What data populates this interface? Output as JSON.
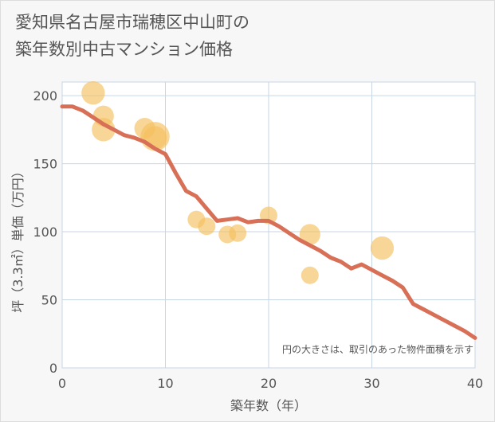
{
  "title": "愛知県名古屋市瑞穂区中山町の\n築年数別中古マンション価格",
  "chart_data": {
    "type": "scatter",
    "title": "愛知県名古屋市瑞穂区中山町の築年数別中古マンション価格",
    "xlabel": "築年数（年）",
    "ylabel": "坪（3.3㎡）単価（万円）",
    "xlim": [
      0,
      40
    ],
    "ylim": [
      0,
      210
    ],
    "x_ticks": [
      0,
      10,
      20,
      30,
      40
    ],
    "y_ticks": [
      0,
      50,
      100,
      150,
      200
    ],
    "grid": true,
    "note": "円の大きさは、取引のあった物件面積を示す",
    "colors": {
      "bubble": "#f5c060",
      "trend": "#d87058"
    },
    "scatter_points": [
      {
        "x": 3,
        "y": 202,
        "size": 3
      },
      {
        "x": 4,
        "y": 185,
        "size": 2
      },
      {
        "x": 4,
        "y": 175,
        "size": 3
      },
      {
        "x": 8,
        "y": 176,
        "size": 2
      },
      {
        "x": 9,
        "y": 170,
        "size": 6
      },
      {
        "x": 9,
        "y": 169,
        "size": 3
      },
      {
        "x": 13,
        "y": 109,
        "size": 1
      },
      {
        "x": 14,
        "y": 104,
        "size": 1
      },
      {
        "x": 16,
        "y": 98,
        "size": 1
      },
      {
        "x": 17,
        "y": 99,
        "size": 1
      },
      {
        "x": 20,
        "y": 112,
        "size": 1
      },
      {
        "x": 24,
        "y": 98,
        "size": 2
      },
      {
        "x": 24,
        "y": 68,
        "size": 1
      },
      {
        "x": 31,
        "y": 88,
        "size": 3
      }
    ],
    "trend_line": [
      {
        "x": 0,
        "y": 192
      },
      {
        "x": 1,
        "y": 192
      },
      {
        "x": 2,
        "y": 189
      },
      {
        "x": 3,
        "y": 184
      },
      {
        "x": 4,
        "y": 179
      },
      {
        "x": 5,
        "y": 175
      },
      {
        "x": 6,
        "y": 171
      },
      {
        "x": 7,
        "y": 169
      },
      {
        "x": 8,
        "y": 166
      },
      {
        "x": 9,
        "y": 161
      },
      {
        "x": 10,
        "y": 157
      },
      {
        "x": 11,
        "y": 143
      },
      {
        "x": 12,
        "y": 130
      },
      {
        "x": 13,
        "y": 126
      },
      {
        "x": 14,
        "y": 117
      },
      {
        "x": 15,
        "y": 108
      },
      {
        "x": 16,
        "y": 109
      },
      {
        "x": 17,
        "y": 110
      },
      {
        "x": 18,
        "y": 107
      },
      {
        "x": 19,
        "y": 108
      },
      {
        "x": 20,
        "y": 108
      },
      {
        "x": 21,
        "y": 104
      },
      {
        "x": 22,
        "y": 99
      },
      {
        "x": 23,
        "y": 94
      },
      {
        "x": 24,
        "y": 90
      },
      {
        "x": 25,
        "y": 86
      },
      {
        "x": 26,
        "y": 81
      },
      {
        "x": 27,
        "y": 78
      },
      {
        "x": 28,
        "y": 73
      },
      {
        "x": 29,
        "y": 76
      },
      {
        "x": 30,
        "y": 72
      },
      {
        "x": 31,
        "y": 68
      },
      {
        "x": 32,
        "y": 64
      },
      {
        "x": 33,
        "y": 59
      },
      {
        "x": 34,
        "y": 47
      },
      {
        "x": 35,
        "y": 43
      },
      {
        "x": 36,
        "y": 39
      },
      {
        "x": 37,
        "y": 35
      },
      {
        "x": 38,
        "y": 31
      },
      {
        "x": 39,
        "y": 27
      },
      {
        "x": 40,
        "y": 22
      }
    ]
  }
}
